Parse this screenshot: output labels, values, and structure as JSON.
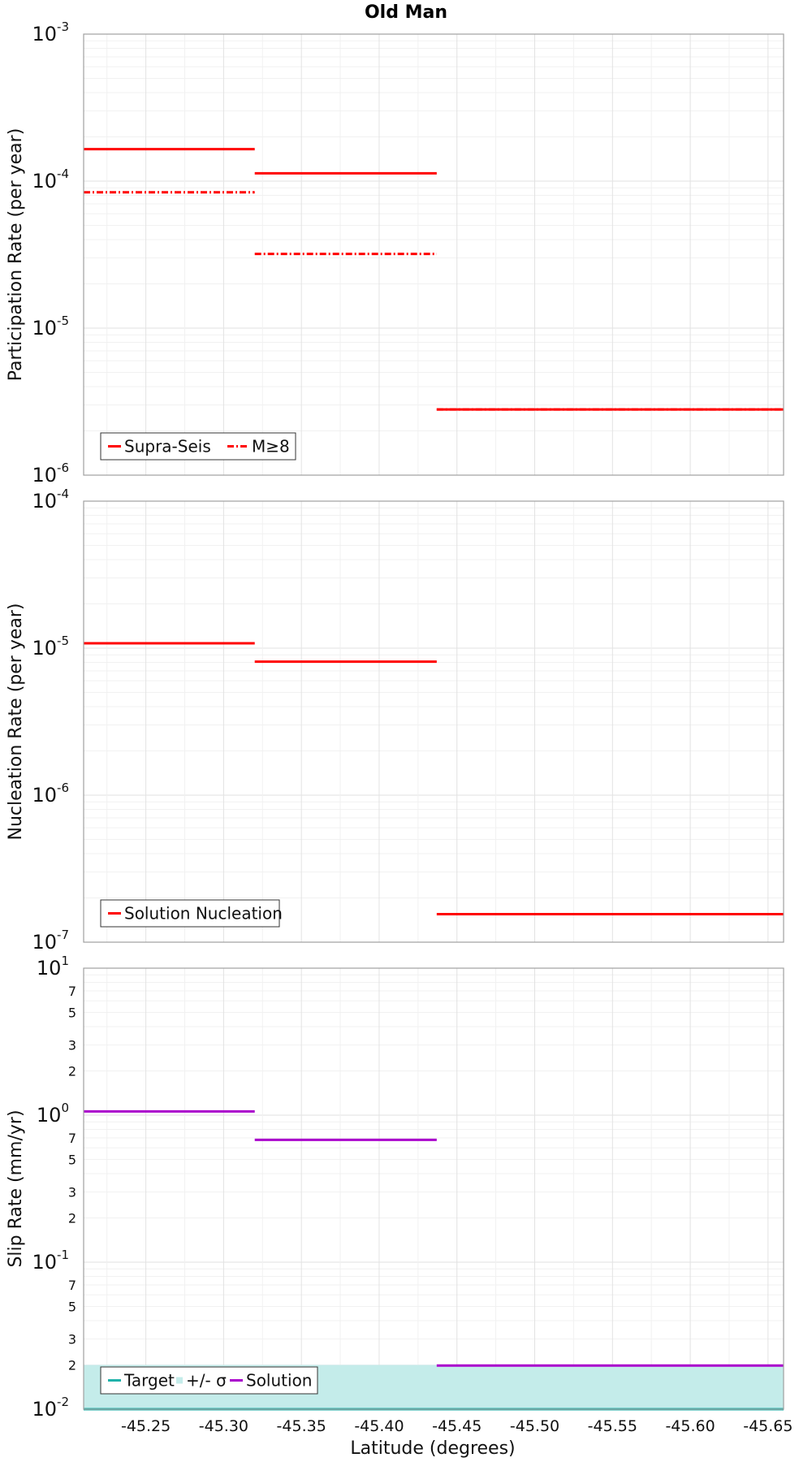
{
  "chart_data": {
    "title": "Old Man",
    "xlabel": "Latitude (degrees)",
    "xlim": [
      -45.21,
      -45.66
    ],
    "xticks": [
      -45.25,
      -45.3,
      -45.35,
      -45.4,
      -45.45,
      -45.5,
      -45.55,
      -45.6,
      -45.65
    ],
    "xtick_labels": [
      "-45.25",
      "-45.30",
      "-45.35",
      "-45.40",
      "-45.45",
      "-45.50",
      "-45.55",
      "-45.60",
      "-45.65"
    ],
    "grid": true,
    "panels": [
      {
        "type": "line",
        "scale": "log",
        "ylabel": "Participation Rate (per year)",
        "ylim": [
          1e-06,
          0.001
        ],
        "ytick_bases": [
          "10",
          "10",
          "10",
          "10"
        ],
        "ytick_exps": [
          "-6",
          "-5",
          "-4",
          "-3"
        ],
        "legend_position": "bottom-left",
        "series": [
          {
            "name": "Supra-Seis",
            "color": "#ff0000",
            "style": "solid",
            "segments": [
              {
                "x0": -45.21,
                "x1": -45.32,
                "y": 0.000165
              },
              {
                "x0": -45.32,
                "x1": -45.437,
                "y": 0.000113
              },
              {
                "x0": -45.437,
                "x1": -45.66,
                "y": 2.8e-06
              }
            ]
          },
          {
            "name": "M≥8",
            "color": "#ff0000",
            "style": "dashdot",
            "segments": [
              {
                "x0": -45.21,
                "x1": -45.32,
                "y": 8.4e-05
              },
              {
                "x0": -45.32,
                "x1": -45.437,
                "y": 3.2e-05
              },
              {
                "x0": -45.437,
                "x1": -45.66,
                "y": 2.8e-06
              }
            ]
          }
        ]
      },
      {
        "type": "line",
        "scale": "log",
        "ylabel": "Nucleation Rate (per year)",
        "ylim": [
          1e-07,
          0.0001
        ],
        "ytick_bases": [
          "10",
          "10",
          "10",
          "10"
        ],
        "ytick_exps": [
          "-7",
          "-6",
          "-5",
          "-4"
        ],
        "legend_position": "bottom-left",
        "series": [
          {
            "name": "Solution Nucleation",
            "color": "#ff0000",
            "style": "solid",
            "segments": [
              {
                "x0": -45.21,
                "x1": -45.32,
                "y": 1.08e-05
              },
              {
                "x0": -45.32,
                "x1": -45.437,
                "y": 8.1e-06
              },
              {
                "x0": -45.437,
                "x1": -45.66,
                "y": 1.55e-07
              }
            ]
          }
        ]
      },
      {
        "type": "line",
        "scale": "log",
        "ylabel": "Slip Rate (mm/yr)",
        "ylim": [
          0.01,
          10
        ],
        "ytick_bases": [
          "10",
          "10",
          "10",
          "10"
        ],
        "ytick_exps": [
          "-2",
          "-1",
          "0",
          "1"
        ],
        "minor_tick_labels": [
          "2",
          "3",
          "5",
          "7"
        ],
        "legend_position": "bottom-left",
        "series": [
          {
            "name": "Target",
            "color": "#20b2aa",
            "style": "solid",
            "segments": [
              {
                "x0": -45.21,
                "x1": -45.66,
                "y": 0.01
              }
            ]
          },
          {
            "name": "+/- σ",
            "color": "#c4ecea",
            "style": "band",
            "band": {
              "x0": -45.21,
              "x1": -45.66,
              "y0": 0.01,
              "y1": 0.02
            }
          },
          {
            "name": "Solution",
            "color": "#aa00cc",
            "style": "solid",
            "segments": [
              {
                "x0": -45.21,
                "x1": -45.32,
                "y": 1.06
              },
              {
                "x0": -45.32,
                "x1": -45.437,
                "y": 0.68
              },
              {
                "x0": -45.437,
                "x1": -45.66,
                "y": 0.0198
              }
            ]
          }
        ]
      }
    ]
  }
}
